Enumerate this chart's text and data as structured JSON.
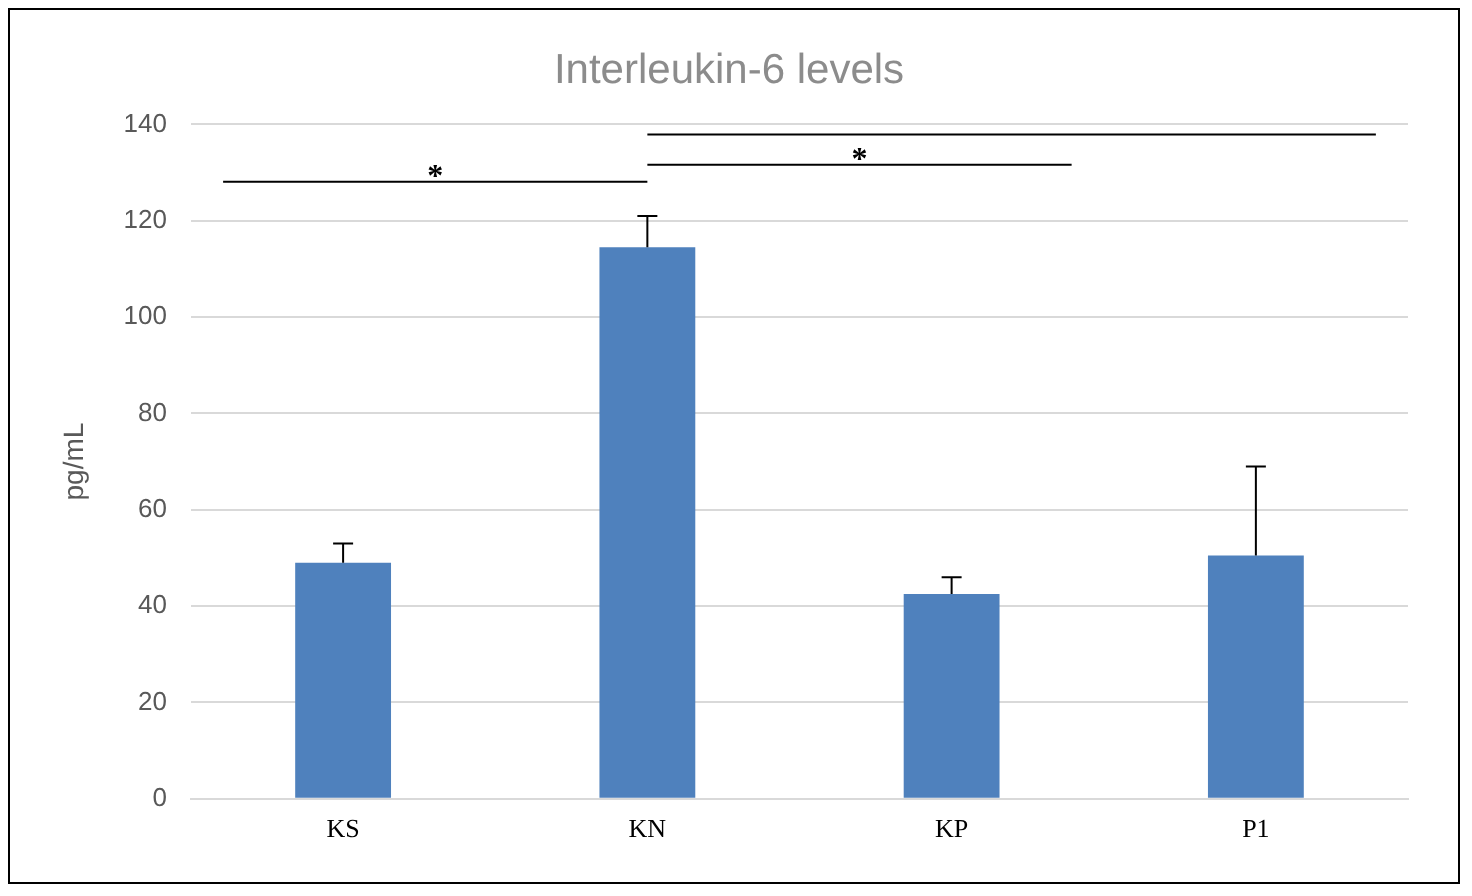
{
  "chart_data": {
    "type": "bar",
    "title": "Interleukin-6 levels",
    "ylabel": "pg/mL",
    "categories": [
      "KS",
      "KN",
      "KP",
      "P1"
    ],
    "values": [
      49,
      114.5,
      42.5,
      50.5
    ],
    "errors": [
      [
        49,
        53
      ],
      [
        114.5,
        121
      ],
      [
        42.5,
        46
      ],
      [
        50.5,
        69
      ]
    ],
    "color": "#4f81bd",
    "ylim": [
      0,
      140
    ],
    "yticks": [
      0,
      20,
      40,
      60,
      80,
      100,
      120,
      140
    ],
    "grid": "y",
    "annotations": [
      "*",
      "*"
    ]
  }
}
